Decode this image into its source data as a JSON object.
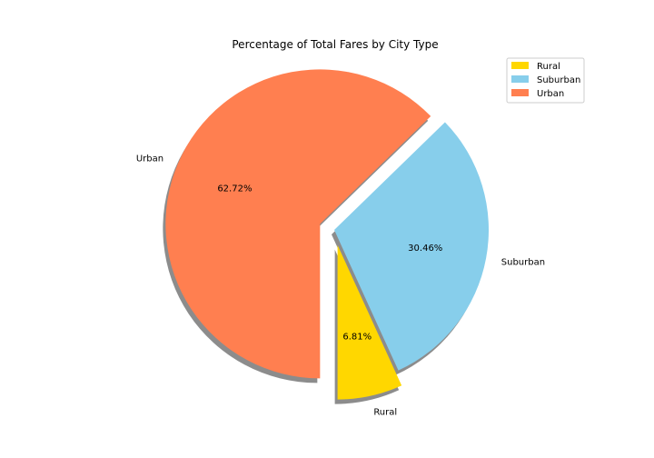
{
  "chart_data": {
    "type": "pie",
    "title": "Percentage of Total Fares by City Type",
    "slices": [
      {
        "label": "Rural",
        "value": 6.81,
        "pct_label": "6.81%",
        "color": "#FFD700",
        "explode": 0.1
      },
      {
        "label": "Suburban",
        "value": 30.46,
        "pct_label": "30.46%",
        "color": "#87CEEB",
        "explode": 0
      },
      {
        "label": "Urban",
        "value": 62.72,
        "pct_label": "62.72%",
        "color": "#FF7F50",
        "explode": 0.1
      }
    ],
    "start_angle_deg": 270,
    "direction": "counterclockwise",
    "shadow": true,
    "legend": {
      "placement": "top-right",
      "entries": [
        "Rural",
        "Suburban",
        "Urban"
      ]
    }
  }
}
